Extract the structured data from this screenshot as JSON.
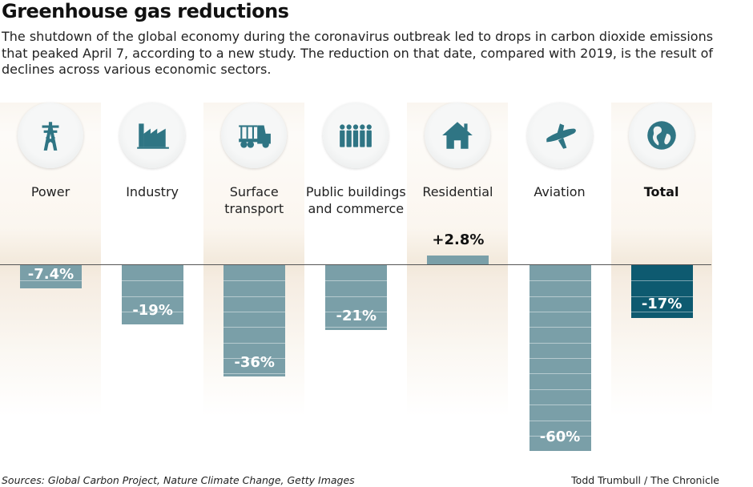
{
  "title": "Greenhouse gas reductions",
  "subtitle": "The shutdown of the global economy during the coronavirus outbreak led to drops in carbon dioxide emissions that peaked April 7, according to a new study. The reduction on that date, compared with 2019, is the result of declines across various economic sectors.",
  "footer": {
    "sources": "Sources: Global Carbon Project, Nature Climate Change, Getty Images",
    "credit": "Todd Trumbull / The Chronicle"
  },
  "colors": {
    "bar": "#7a9fa8",
    "total_bar": "#0e5a70",
    "icon": "#2f7584",
    "shade": "#f2e8da"
  },
  "chart_data": {
    "type": "bar",
    "categories": [
      "Power",
      "Industry",
      "Surface transport",
      "Public buildings and commerce",
      "Residential",
      "Aviation",
      "Total"
    ],
    "values": [
      -7.4,
      -19,
      -36,
      -21,
      2.8,
      -60,
      -17
    ],
    "data_labels": [
      "-7.4%",
      "-19%",
      "-36%",
      "-21%",
      "+2.8%",
      "-60%",
      "-17%"
    ],
    "icons": [
      "power-tower-icon",
      "factory-icon",
      "truck-icon",
      "people-icon",
      "house-icon",
      "airplane-icon",
      "globe-icon"
    ],
    "unit": "%",
    "grid": false
  }
}
